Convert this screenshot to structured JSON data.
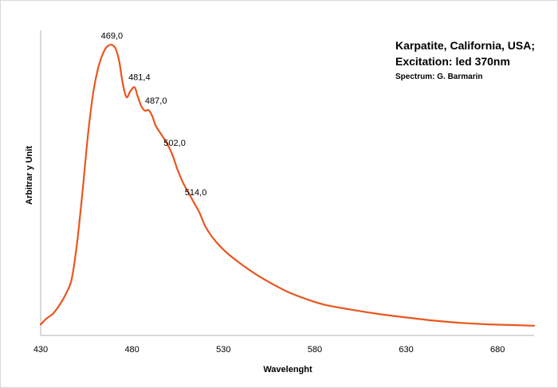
{
  "chart_data": {
    "type": "line",
    "title_lines": [
      "Karpatite, California, USA;",
      "Excitation:  led 370nm"
    ],
    "subtitle": "Spectrum: G. Barmarin",
    "xlabel": "Wavelenght",
    "ylabel": "Arbitrar y Unit",
    "xlim": [
      430,
      700
    ],
    "ylim": [
      0,
      100
    ],
    "x_ticks": [
      "430",
      "480",
      "530",
      "580",
      "630",
      "680"
    ],
    "grid": false,
    "legend": "none",
    "line_color": "#e8561e",
    "series": [
      {
        "x": [
          430,
          433,
          437,
          441,
          444,
          447,
          450,
          453,
          456,
          459,
          462,
          465,
          467,
          469,
          471,
          473,
          475,
          477,
          479,
          481.4,
          483,
          485,
          487,
          489,
          491,
          493,
          496,
          499,
          502,
          505,
          508,
          511,
          514,
          517,
          520,
          524,
          528,
          533,
          540,
          548,
          556,
          565,
          575,
          585,
          600,
          615,
          630,
          645,
          660,
          675,
          690,
          700
        ],
        "y": [
          1,
          3,
          5,
          8.5,
          12,
          17,
          30,
          48,
          68,
          83,
          92,
          97,
          98.5,
          98.8,
          97.5,
          93,
          85,
          80.5,
          82.5,
          84,
          81,
          77.5,
          75.8,
          76,
          74,
          70.5,
          67.5,
          64.5,
          60.5,
          55,
          50.5,
          47,
          43.5,
          40,
          35.5,
          31.5,
          28.5,
          25.5,
          22,
          18.5,
          15.5,
          12.5,
          10,
          8,
          6.2,
          4.7,
          3.5,
          2.4,
          1.6,
          1.1,
          0.8,
          0.6
        ]
      }
    ],
    "annotations": [
      {
        "x": 469,
        "y": 98.8,
        "text": "469,0"
      },
      {
        "x": 481.4,
        "y": 84,
        "text": "481,4"
      },
      {
        "x": 487,
        "y": 75.8,
        "text": "487,0"
      },
      {
        "x": 502,
        "y": 60.5,
        "text": "502,0"
      },
      {
        "x": 514,
        "y": 43.5,
        "text": "514,0"
      }
    ]
  }
}
